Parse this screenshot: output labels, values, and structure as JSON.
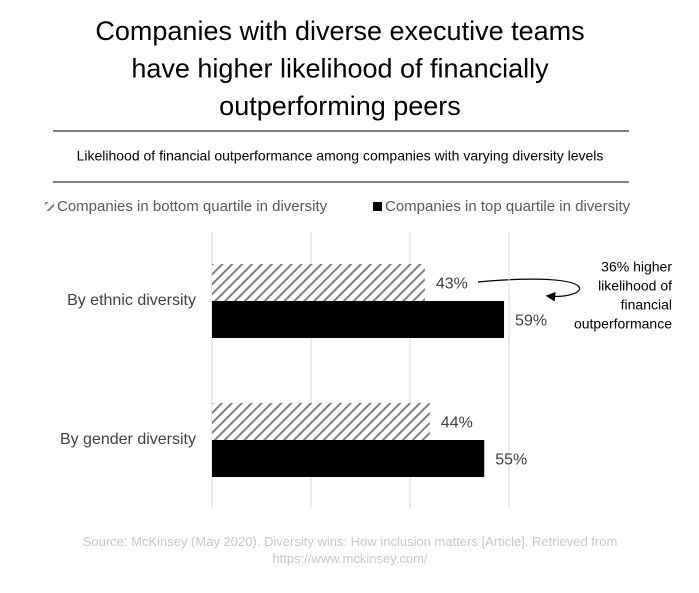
{
  "chart_data": {
    "type": "hbar",
    "title": [
      "Companies with diverse executive teams",
      "have higher likelihood of financially",
      "outperforming peers"
    ],
    "subtitle": "Likelihood of financial outperformance among companies with varying diversity levels",
    "categories": [
      "By ethnic diversity",
      "By gender diversity"
    ],
    "series": [
      {
        "name": "Companies in bottom quartile in diversity",
        "color": "#7f7f7f",
        "hatch": true,
        "values": [
          43,
          44
        ],
        "value_labels": [
          "43%",
          "44%"
        ]
      },
      {
        "name": "Companies in top quartile in diversity",
        "color": "#000000",
        "hatch": false,
        "values": [
          59,
          55
        ],
        "value_labels": [
          "59%",
          "55%"
        ]
      }
    ],
    "xlim": [
      0,
      60
    ],
    "xticks": [
      0,
      20,
      40,
      60
    ],
    "grid": true,
    "legend": "top",
    "annotation": [
      "36% higher",
      "likelihood of",
      "financial",
      "outperformance"
    ],
    "source": "Source: McKinsey (May 2020). Diversity wins: How inclusion matters [Article]. Retrieved from https://www.mckinsey.com/"
  }
}
